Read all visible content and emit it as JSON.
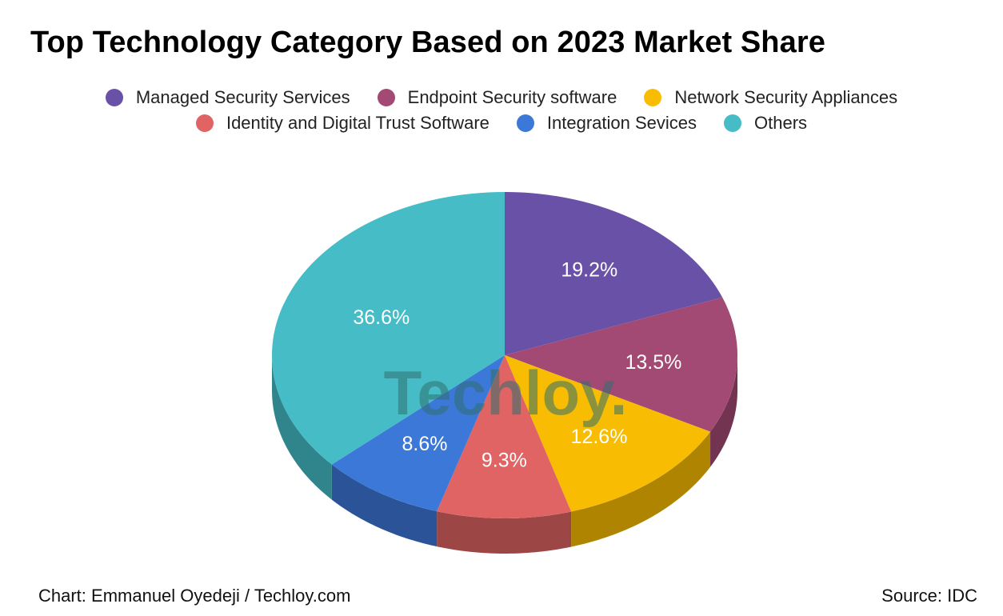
{
  "chart_data": {
    "type": "pie",
    "title": "Top Technology Category Based on 2023 Market Share",
    "categories": [
      "Managed Security Services",
      "Endpoint Security software",
      "Network Security Appliances",
      "Identity and Digital Trust Software",
      "Integration Sevices",
      "Others"
    ],
    "values": [
      19.2,
      13.5,
      12.6,
      9.3,
      8.6,
      36.6
    ],
    "labels": [
      "19.2%",
      "13.5%",
      "12.6%",
      "9.3%",
      "8.6%",
      "36.6%"
    ],
    "colors": [
      "#6a51a8",
      "#a34a74",
      "#f8bc02",
      "#e06464",
      "#3c78d8",
      "#45bcc6"
    ],
    "legend_position": "top",
    "watermark": "Techloy."
  },
  "footer": {
    "credit": "Chart: Emmanuel Oyedeji / Techloy.com",
    "source": "Source: IDC"
  }
}
